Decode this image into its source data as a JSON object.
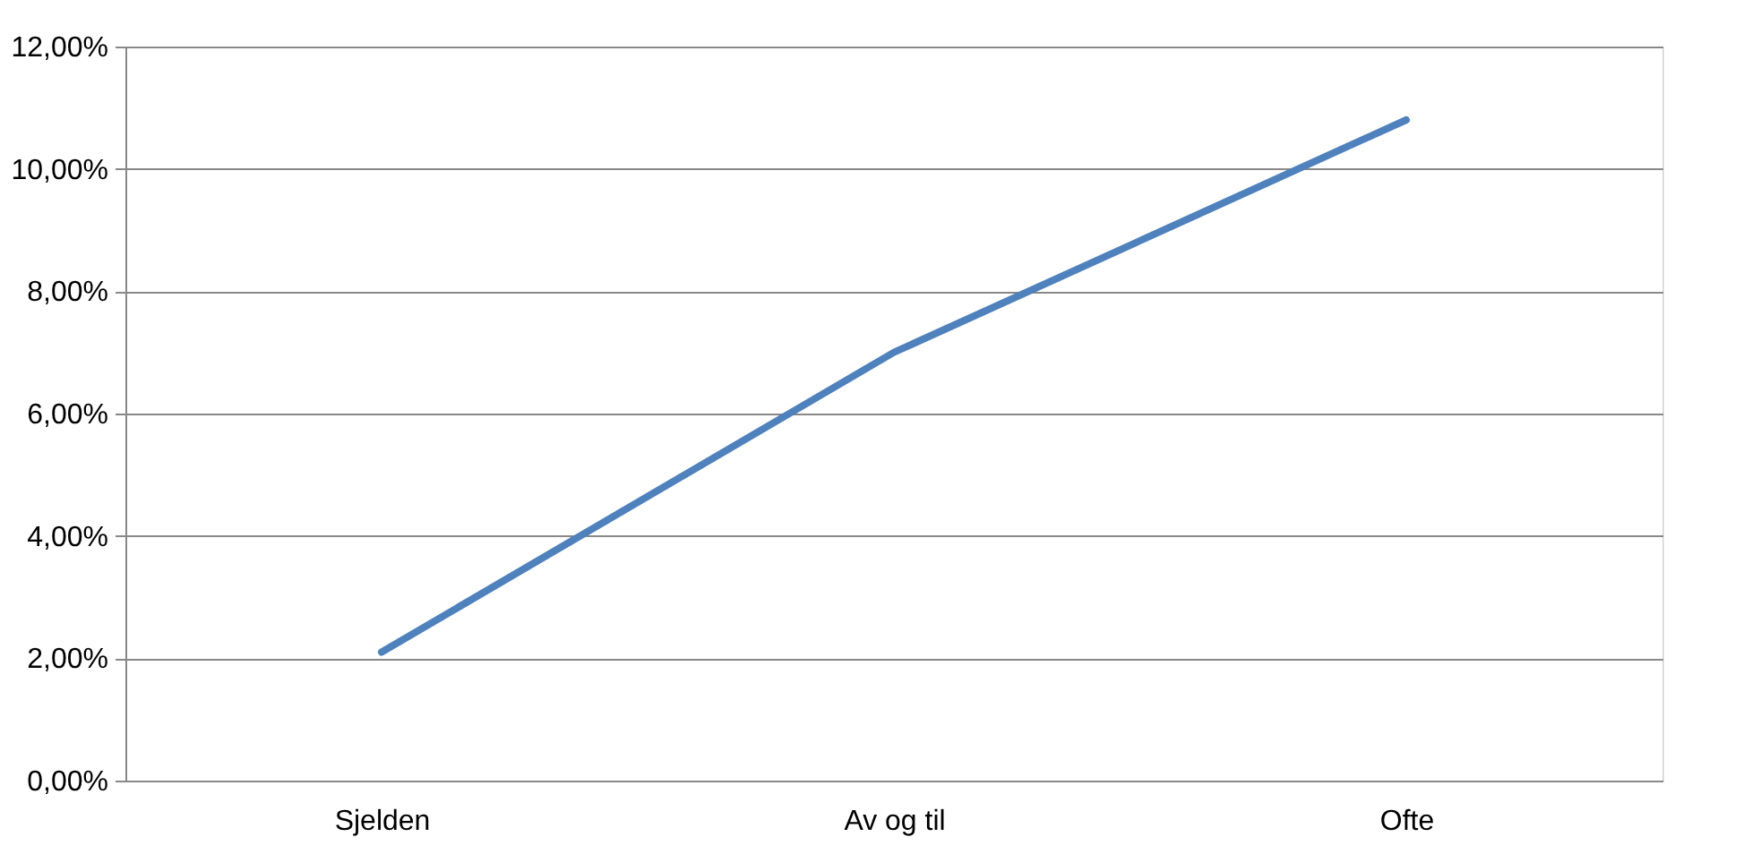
{
  "chart_data": {
    "type": "line",
    "categories": [
      "Sjelden",
      "Av og til",
      "Ofte"
    ],
    "series": [
      {
        "color": "#4f81bd",
        "values": [
          2.1,
          7.0,
          10.8
        ]
      }
    ],
    "ylim": [
      0,
      12
    ],
    "yticks": [
      {
        "value": 0,
        "label": "0,00%"
      },
      {
        "value": 2,
        "label": "2,00%"
      },
      {
        "value": 4,
        "label": "4,00%"
      },
      {
        "value": 6,
        "label": "6,00%"
      },
      {
        "value": 8,
        "label": "8,00%"
      },
      {
        "value": 10,
        "label": "10,00%"
      },
      {
        "value": 12,
        "label": "12,00%"
      }
    ],
    "grid": "y",
    "marker": "none",
    "line_style": "solid"
  }
}
